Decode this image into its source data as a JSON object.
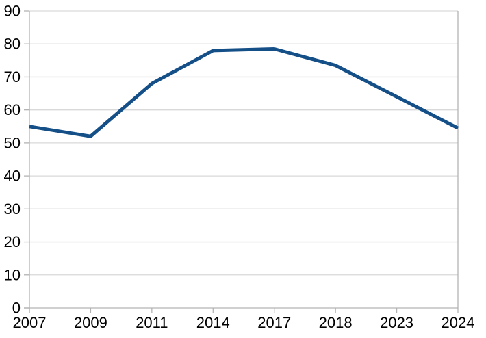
{
  "chart_data": {
    "type": "line",
    "title": "",
    "xlabel": "",
    "ylabel": "",
    "categories": [
      "2007",
      "2009",
      "2011",
      "2014",
      "2017",
      "2018",
      "2023",
      "2024"
    ],
    "series": [
      {
        "name": "",
        "values": [
          55,
          52,
          68,
          78,
          78.5,
          73.5,
          64,
          54.5
        ]
      }
    ],
    "ylim": [
      0,
      90
    ],
    "ytick_step": 10,
    "grid": true,
    "legend_position": "none",
    "colors": {
      "line": "#154F87",
      "gridline": "#d9d9d9",
      "axis": "#b3b3b3",
      "text": "#000000",
      "background": "#ffffff"
    }
  }
}
